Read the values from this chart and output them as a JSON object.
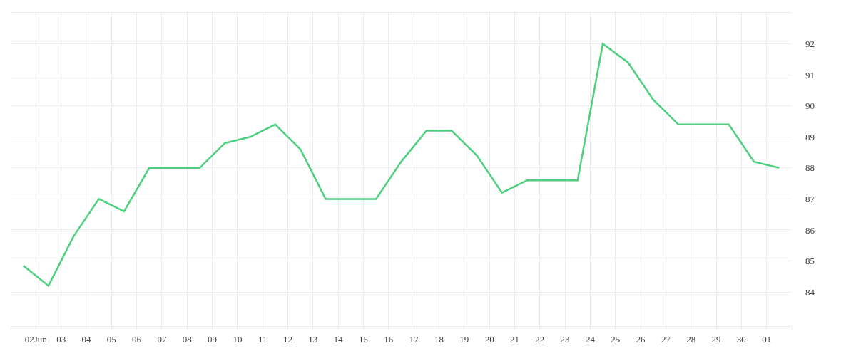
{
  "chart_data": {
    "type": "line",
    "x": [
      "--06-01T12:00",
      "--06-02T12:00",
      "--06-03T12:00",
      "--06-04T12:00",
      "--06-05T12:00",
      "--06-06T12:00",
      "--06-07T12:00",
      "--06-08T12:00",
      "--06-09T12:00",
      "--06-10T12:00",
      "--06-11T12:00",
      "--06-12T12:00",
      "--06-13T12:00",
      "--06-14T12:00",
      "--06-15T12:00",
      "--06-16T12:00",
      "--06-17T12:00",
      "--06-18T12:00",
      "--06-19T12:00",
      "--06-20T12:00",
      "--06-21T12:00",
      "--06-22T12:00",
      "--06-23T12:00",
      "--06-24T12:00",
      "--06-25T12:00",
      "--06-26T12:00",
      "--06-27T12:00",
      "--06-28T12:00",
      "--06-29T12:00",
      "--06-30T12:00",
      "--07-01T12:00"
    ],
    "series": [
      {
        "color": "#4cd07d",
        "values": [
          84.85,
          84.2,
          85.8,
          87.0,
          86.6,
          88.0,
          88.0,
          88.0,
          88.8,
          89.0,
          89.4,
          88.6,
          87.0,
          87.0,
          87.0,
          88.2,
          89.2,
          89.2,
          88.4,
          87.2,
          87.6,
          87.6,
          87.6,
          92.0,
          91.4,
          90.2,
          89.4,
          89.4,
          89.4,
          88.2,
          88.0
        ]
      }
    ],
    "xlim": [
      "--06-01",
      "--07-02"
    ],
    "xticks": [
      {
        "value": "--06-01",
        "label": null
      },
      {
        "value": "--06-02",
        "label": "02Jun"
      },
      {
        "value": "--06-03",
        "label": "03"
      },
      {
        "value": "--06-04",
        "label": "04"
      },
      {
        "value": "--06-05",
        "label": "05"
      },
      {
        "value": "--06-06",
        "label": "06"
      },
      {
        "value": "--06-07",
        "label": "07"
      },
      {
        "value": "--06-08",
        "label": "08"
      },
      {
        "value": "--06-09",
        "label": "09"
      },
      {
        "value": "--06-10",
        "label": "10"
      },
      {
        "value": "--06-11",
        "label": "11"
      },
      {
        "value": "--06-12",
        "label": "12"
      },
      {
        "value": "--06-13",
        "label": "13"
      },
      {
        "value": "--06-14",
        "label": "14"
      },
      {
        "value": "--06-15",
        "label": "15"
      },
      {
        "value": "--06-16",
        "label": "16"
      },
      {
        "value": "--06-17",
        "label": "17"
      },
      {
        "value": "--06-18",
        "label": "18"
      },
      {
        "value": "--06-19",
        "label": "19"
      },
      {
        "value": "--06-20",
        "label": "20"
      },
      {
        "value": "--06-21",
        "label": "21"
      },
      {
        "value": "--06-22",
        "label": "22"
      },
      {
        "value": "--06-23",
        "label": "23"
      },
      {
        "value": "--06-24",
        "label": "24"
      },
      {
        "value": "--06-25",
        "label": "25"
      },
      {
        "value": "--06-26",
        "label": "26"
      },
      {
        "value": "--06-27",
        "label": "27"
      },
      {
        "value": "--06-28",
        "label": "28"
      },
      {
        "value": "--06-29",
        "label": "29"
      },
      {
        "value": "--06-30",
        "label": "30"
      },
      {
        "value": "--07-01",
        "label": "01"
      },
      {
        "value": "--07-02",
        "label": null
      }
    ],
    "ylim": [
      82.9,
      93
    ],
    "yticks": [
      84,
      85,
      86,
      87,
      88,
      89,
      90,
      91,
      92
    ],
    "grid": true,
    "marker": "none",
    "line_style": "solid"
  }
}
